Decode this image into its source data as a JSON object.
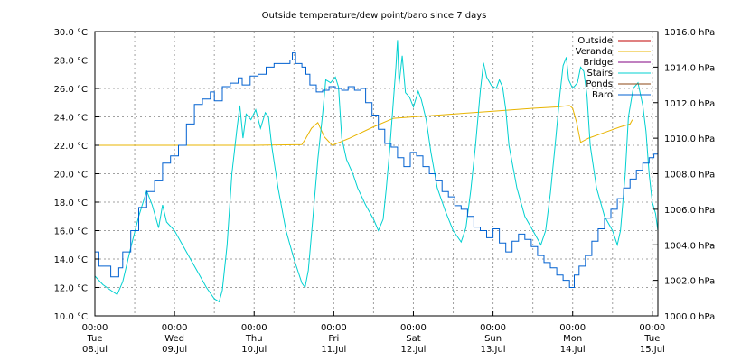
{
  "chart_data": {
    "type": "line",
    "title": "Outside temperature/dew point/baro since 7 days",
    "y_left": {
      "min": 10.0,
      "max": 30.0,
      "step": 2.0,
      "unit": "°C",
      "ticks": [
        "10.0 °C",
        "12.0 °C",
        "14.0 °C",
        "16.0 °C",
        "18.0 °C",
        "20.0 °C",
        "22.0 °C",
        "24.0 °C",
        "26.0 °C",
        "28.0 °C",
        "30.0 °C"
      ]
    },
    "y_right": {
      "min": 1000.0,
      "max": 1016.0,
      "step": 2.0,
      "unit": "hPa",
      "ticks": [
        "1000.0 hPa",
        "1002.0 hPa",
        "1004.0 hPa",
        "1006.0 hPa",
        "1008.0 hPa",
        "1010.0 hPa",
        "1012.0 hPa",
        "1014.0 hPa",
        "1016.0 hPa"
      ]
    },
    "x_range_days": [
      0,
      7.07
    ],
    "x_ticks": [
      {
        "day": 0,
        "time": "00:00",
        "weekday": "Tue",
        "date": "08.Jul"
      },
      {
        "day": 1,
        "time": "00:00",
        "weekday": "Wed",
        "date": "09.Jul"
      },
      {
        "day": 2,
        "time": "00:00",
        "weekday": "Thu",
        "date": "10.Jul"
      },
      {
        "day": 3,
        "time": "00:00",
        "weekday": "Fri",
        "date": "11.Jul"
      },
      {
        "day": 4,
        "time": "00:00",
        "weekday": "Sat",
        "date": "12.Jul"
      },
      {
        "day": 5,
        "time": "00:00",
        "weekday": "Sun",
        "date": "13.Jul"
      },
      {
        "day": 6,
        "time": "00:00",
        "weekday": "Mon",
        "date": "14.Jul"
      },
      {
        "day": 7,
        "time": "00:00",
        "weekday": "Tue",
        "date": "15.Jul"
      }
    ],
    "grid": true,
    "legend_position": "top-right",
    "series": [
      {
        "name": "Outside",
        "color": "#c00000",
        "axis": "left",
        "points": []
      },
      {
        "name": "Veranda",
        "color": "#e8b400",
        "axis": "left",
        "points": [
          [
            0.0,
            22.0
          ],
          [
            1.0,
            22.0
          ],
          [
            2.0,
            22.0
          ],
          [
            2.6,
            22.05
          ],
          [
            2.65,
            22.5
          ],
          [
            2.72,
            23.2
          ],
          [
            2.8,
            23.6
          ],
          [
            2.88,
            22.6
          ],
          [
            2.98,
            22.0
          ],
          [
            3.2,
            22.5
          ],
          [
            3.5,
            23.3
          ],
          [
            3.75,
            23.9
          ],
          [
            4.0,
            24.0
          ],
          [
            4.5,
            24.2
          ],
          [
            5.0,
            24.4
          ],
          [
            5.5,
            24.6
          ],
          [
            5.8,
            24.7
          ],
          [
            5.96,
            24.8
          ],
          [
            6.0,
            24.6
          ],
          [
            6.05,
            23.6
          ],
          [
            6.1,
            22.2
          ],
          [
            6.2,
            22.5
          ],
          [
            6.4,
            22.9
          ],
          [
            6.6,
            23.3
          ],
          [
            6.72,
            23.5
          ],
          [
            6.75,
            23.8
          ]
        ]
      },
      {
        "name": "Bridge",
        "color": "#800080",
        "axis": "left",
        "points": []
      },
      {
        "name": "Stairs",
        "color": "#00d0d0",
        "axis": "left",
        "points": [
          [
            0.0,
            12.8
          ],
          [
            0.1,
            12.2
          ],
          [
            0.2,
            11.8
          ],
          [
            0.28,
            11.5
          ],
          [
            0.35,
            12.4
          ],
          [
            0.45,
            14.8
          ],
          [
            0.55,
            17.0
          ],
          [
            0.65,
            18.8
          ],
          [
            0.72,
            17.8
          ],
          [
            0.8,
            16.2
          ],
          [
            0.85,
            17.8
          ],
          [
            0.9,
            16.6
          ],
          [
            1.0,
            16.0
          ],
          [
            1.1,
            15.0
          ],
          [
            1.2,
            14.0
          ],
          [
            1.3,
            13.0
          ],
          [
            1.4,
            12.0
          ],
          [
            1.5,
            11.2
          ],
          [
            1.56,
            11.0
          ],
          [
            1.6,
            11.8
          ],
          [
            1.66,
            15.0
          ],
          [
            1.72,
            20.0
          ],
          [
            1.78,
            23.0
          ],
          [
            1.82,
            24.8
          ],
          [
            1.86,
            22.5
          ],
          [
            1.9,
            24.2
          ],
          [
            1.96,
            23.8
          ],
          [
            2.02,
            24.5
          ],
          [
            2.08,
            23.2
          ],
          [
            2.14,
            24.3
          ],
          [
            2.18,
            24.0
          ],
          [
            2.22,
            22.0
          ],
          [
            2.3,
            19.0
          ],
          [
            2.4,
            16.0
          ],
          [
            2.5,
            14.0
          ],
          [
            2.6,
            12.3
          ],
          [
            2.64,
            12.0
          ],
          [
            2.68,
            13.2
          ],
          [
            2.74,
            17.0
          ],
          [
            2.8,
            21.0
          ],
          [
            2.86,
            24.2
          ],
          [
            2.9,
            26.6
          ],
          [
            2.96,
            26.4
          ],
          [
            3.02,
            26.8
          ],
          [
            3.06,
            26.1
          ],
          [
            3.1,
            22.5
          ],
          [
            3.16,
            21.0
          ],
          [
            3.24,
            20.0
          ],
          [
            3.3,
            19.0
          ],
          [
            3.4,
            17.8
          ],
          [
            3.5,
            16.8
          ],
          [
            3.56,
            16.0
          ],
          [
            3.62,
            16.8
          ],
          [
            3.66,
            19.0
          ],
          [
            3.7,
            21.5
          ],
          [
            3.74,
            24.5
          ],
          [
            3.78,
            27.5
          ],
          [
            3.8,
            29.4
          ],
          [
            3.82,
            26.3
          ],
          [
            3.86,
            28.3
          ],
          [
            3.9,
            25.7
          ],
          [
            3.95,
            25.4
          ],
          [
            4.0,
            24.7
          ],
          [
            4.06,
            25.8
          ],
          [
            4.1,
            25.2
          ],
          [
            4.16,
            23.8
          ],
          [
            4.22,
            21.5
          ],
          [
            4.3,
            19.0
          ],
          [
            4.4,
            17.4
          ],
          [
            4.5,
            16.0
          ],
          [
            4.6,
            15.2
          ],
          [
            4.66,
            16.2
          ],
          [
            4.72,
            18.8
          ],
          [
            4.78,
            22.0
          ],
          [
            4.84,
            25.8
          ],
          [
            4.88,
            27.8
          ],
          [
            4.92,
            26.8
          ],
          [
            4.98,
            26.2
          ],
          [
            5.04,
            26.0
          ],
          [
            5.08,
            26.6
          ],
          [
            5.12,
            26.1
          ],
          [
            5.16,
            24.5
          ],
          [
            5.2,
            22.0
          ],
          [
            5.3,
            19.0
          ],
          [
            5.4,
            17.0
          ],
          [
            5.5,
            16.0
          ],
          [
            5.6,
            15.0
          ],
          [
            5.66,
            16.0
          ],
          [
            5.72,
            18.6
          ],
          [
            5.78,
            22.0
          ],
          [
            5.84,
            25.6
          ],
          [
            5.88,
            27.6
          ],
          [
            5.92,
            28.2
          ],
          [
            5.95,
            26.6
          ],
          [
            6.0,
            26.0
          ],
          [
            6.06,
            26.4
          ],
          [
            6.1,
            27.5
          ],
          [
            6.14,
            27.2
          ],
          [
            6.18,
            25.5
          ],
          [
            6.22,
            22.0
          ],
          [
            6.3,
            19.0
          ],
          [
            6.4,
            17.0
          ],
          [
            6.5,
            16.0
          ],
          [
            6.56,
            15.0
          ],
          [
            6.6,
            16.0
          ],
          [
            6.66,
            20.0
          ],
          [
            6.7,
            24.0
          ],
          [
            6.76,
            26.0
          ],
          [
            6.82,
            26.4
          ],
          [
            6.88,
            24.8
          ],
          [
            6.92,
            23.0
          ],
          [
            6.96,
            20.0
          ],
          [
            7.0,
            18.0
          ],
          [
            7.04,
            17.2
          ],
          [
            7.07,
            16.0
          ]
        ]
      },
      {
        "name": "Ponds",
        "color": "#8b4513",
        "axis": "left",
        "points": []
      },
      {
        "name": "Baro",
        "color": "#0060d0",
        "axis": "right",
        "points": [
          [
            0.0,
            1003.6
          ],
          [
            0.05,
            1002.8
          ],
          [
            0.2,
            1002.2
          ],
          [
            0.3,
            1002.7
          ],
          [
            0.35,
            1003.6
          ],
          [
            0.45,
            1004.8
          ],
          [
            0.55,
            1006.1
          ],
          [
            0.65,
            1007.0
          ],
          [
            0.75,
            1007.6
          ],
          [
            0.85,
            1008.6
          ],
          [
            0.95,
            1009.0
          ],
          [
            1.05,
            1009.6
          ],
          [
            1.15,
            1010.8
          ],
          [
            1.25,
            1011.9
          ],
          [
            1.35,
            1012.2
          ],
          [
            1.45,
            1012.6
          ],
          [
            1.5,
            1012.1
          ],
          [
            1.6,
            1012.9
          ],
          [
            1.7,
            1013.1
          ],
          [
            1.8,
            1013.4
          ],
          [
            1.85,
            1013.0
          ],
          [
            1.95,
            1013.5
          ],
          [
            2.05,
            1013.6
          ],
          [
            2.15,
            1014.0
          ],
          [
            2.25,
            1014.2
          ],
          [
            2.35,
            1014.2
          ],
          [
            2.45,
            1014.4
          ],
          [
            2.48,
            1014.8
          ],
          [
            2.52,
            1014.2
          ],
          [
            2.6,
            1014.0
          ],
          [
            2.65,
            1013.6
          ],
          [
            2.7,
            1013.0
          ],
          [
            2.78,
            1012.6
          ],
          [
            2.86,
            1012.7
          ],
          [
            2.94,
            1012.9
          ],
          [
            3.02,
            1012.8
          ],
          [
            3.1,
            1012.7
          ],
          [
            3.18,
            1012.9
          ],
          [
            3.26,
            1012.7
          ],
          [
            3.34,
            1012.8
          ],
          [
            3.4,
            1012.0
          ],
          [
            3.48,
            1011.3
          ],
          [
            3.56,
            1010.5
          ],
          [
            3.64,
            1009.7
          ],
          [
            3.72,
            1009.5
          ],
          [
            3.8,
            1008.9
          ],
          [
            3.88,
            1008.4
          ],
          [
            3.96,
            1009.2
          ],
          [
            4.04,
            1009.0
          ],
          [
            4.12,
            1008.4
          ],
          [
            4.2,
            1008.0
          ],
          [
            4.28,
            1007.6
          ],
          [
            4.36,
            1007.0
          ],
          [
            4.44,
            1006.7
          ],
          [
            4.52,
            1006.2
          ],
          [
            4.6,
            1006.0
          ],
          [
            4.68,
            1005.6
          ],
          [
            4.76,
            1005.0
          ],
          [
            4.84,
            1004.8
          ],
          [
            4.92,
            1004.4
          ],
          [
            5.0,
            1004.9
          ],
          [
            5.08,
            1004.1
          ],
          [
            5.16,
            1003.6
          ],
          [
            5.24,
            1004.2
          ],
          [
            5.32,
            1004.6
          ],
          [
            5.4,
            1004.3
          ],
          [
            5.48,
            1003.9
          ],
          [
            5.56,
            1003.4
          ],
          [
            5.64,
            1003.0
          ],
          [
            5.72,
            1002.7
          ],
          [
            5.8,
            1002.3
          ],
          [
            5.88,
            1002.0
          ],
          [
            5.96,
            1001.6
          ],
          [
            6.02,
            1002.3
          ],
          [
            6.08,
            1002.8
          ],
          [
            6.16,
            1003.4
          ],
          [
            6.24,
            1004.2
          ],
          [
            6.32,
            1004.9
          ],
          [
            6.4,
            1005.5
          ],
          [
            6.48,
            1006.0
          ],
          [
            6.56,
            1006.6
          ],
          [
            6.64,
            1007.2
          ],
          [
            6.72,
            1007.7
          ],
          [
            6.8,
            1008.2
          ],
          [
            6.88,
            1008.6
          ],
          [
            6.96,
            1008.9
          ],
          [
            7.02,
            1009.1
          ],
          [
            7.07,
            1009.6
          ]
        ]
      }
    ]
  }
}
